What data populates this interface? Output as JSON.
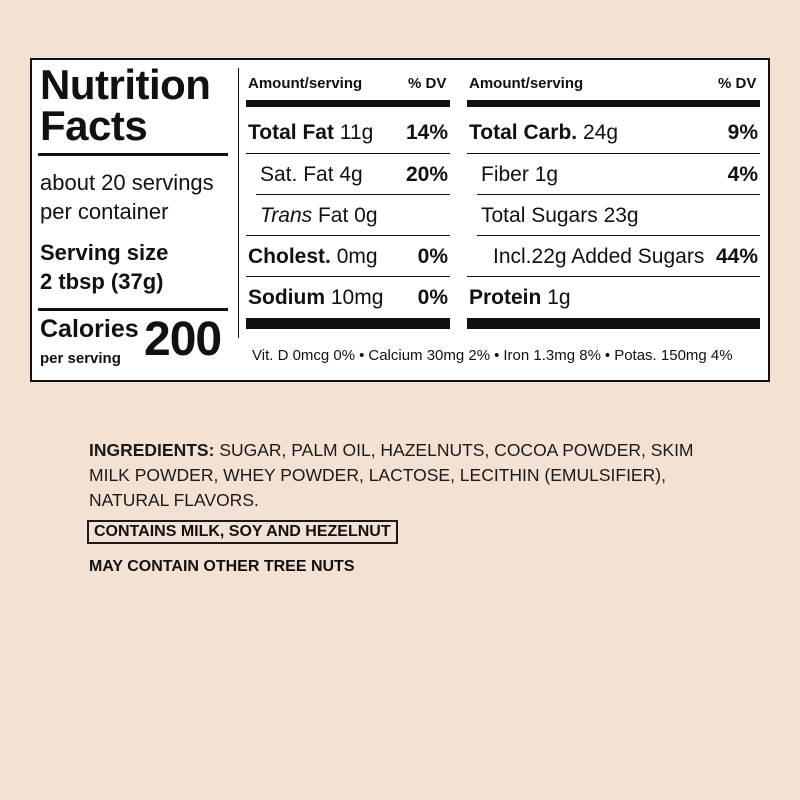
{
  "facts": {
    "title_line1": "Nutrition",
    "title_line2": "Facts",
    "servings_line1": "about 20 servings",
    "servings_line2": "per container",
    "serving_size_label": "Serving size",
    "serving_size_value": "2 tbsp (37g)",
    "calories_label": "Calories",
    "calories_sub": "per serving",
    "calories_value": "200",
    "header_amount": "Amount/serving",
    "header_dv": "% DV",
    "left_rows": [
      {
        "name": "Total Fat",
        "amount": "11g",
        "dv": "14%"
      },
      {
        "name": "Sat. Fat",
        "amount": "4g",
        "dv": "20%"
      },
      {
        "name": "Trans",
        "amount": "Fat 0g",
        "dv": ""
      },
      {
        "name": "Cholest.",
        "amount": "0mg",
        "dv": "0%"
      },
      {
        "name": "Sodium",
        "amount": "10mg",
        "dv": "0%"
      }
    ],
    "right_rows": [
      {
        "name": "Total Carb.",
        "amount": "24g",
        "dv": "9%"
      },
      {
        "name": "Fiber",
        "amount": "1g",
        "dv": "4%"
      },
      {
        "name": "Total Sugars",
        "amount": "23g",
        "dv": ""
      },
      {
        "name": "Incl.22g Added Sugars",
        "amount": "",
        "dv": "44%"
      },
      {
        "name": "Protein",
        "amount": "1g",
        "dv": ""
      }
    ],
    "vitamins": [
      "Vit. D 0mcg 0%",
      "Calcium 30mg 2%",
      "Iron 1.3mg 8%",
      "Potas. 150mg 4%"
    ],
    "bullet": "•"
  },
  "ingredients": {
    "label": "INGREDIENTS:",
    "text": "SUGAR, PALM OIL, HAZELNUTS, COCOA POWDER, SKIM MILK POWDER, WHEY POWDER, LACTOSE, LECITHIN (EMULSIFIER), NATURAL FLAVORS."
  },
  "allergens": {
    "contains": "CONTAINS MILK, SOY AND HEZELNUT",
    "may_contain": "MAY CONTAIN OTHER TREE NUTS"
  }
}
